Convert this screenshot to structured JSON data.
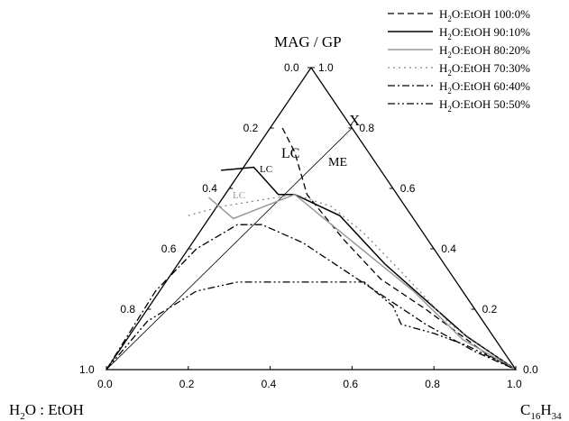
{
  "chart_data": {
    "type": "ternary",
    "vertices": {
      "top": "MAG / GP",
      "left_base": "H",
      "left_sub": "2",
      "left_rest": "O : EtOH",
      "right_base": "C",
      "right_sub": "16",
      "right_sub2": "H",
      "right_sub3": "34"
    },
    "ticks": {
      "bottom": [
        "0.0",
        "0.2",
        "0.4",
        "0.6",
        "0.8",
        "1.0"
      ],
      "left": [
        "0.0",
        "0.2",
        "0.4",
        "0.6",
        "0.8",
        "1.0"
      ],
      "right": [
        "1.0",
        "0.8",
        "0.6",
        "0.4",
        "0.2",
        "0.0"
      ]
    },
    "annotations": {
      "lc_big": "LC",
      "lc_mid": "LC",
      "lc_small": "LC",
      "me": "ME",
      "x": "X"
    },
    "legend_position": "top-right",
    "series": [
      {
        "name_pre": "H",
        "name_sub": "2",
        "name_post": "O:EtOH 100:0%",
        "style": "dash",
        "color": "#000000",
        "points": [
          [
            0.43,
            0.8
          ],
          [
            0.46,
            0.72
          ],
          [
            0.49,
            0.58
          ],
          [
            0.58,
            0.43
          ],
          [
            0.67,
            0.3
          ],
          [
            0.78,
            0.2
          ],
          [
            0.93,
            0.05
          ],
          [
            1.0,
            0.0
          ]
        ]
      },
      {
        "name_pre": "H",
        "name_sub": "2",
        "name_post": "O:EtOH 90:10%",
        "style": "solid",
        "color": "#000000",
        "points": [
          [
            0.28,
            0.66
          ],
          [
            0.36,
            0.67
          ],
          [
            0.42,
            0.58
          ],
          [
            0.46,
            0.58
          ],
          [
            0.57,
            0.51
          ],
          [
            0.68,
            0.35
          ],
          [
            0.78,
            0.23
          ],
          [
            0.88,
            0.11
          ],
          [
            1.0,
            0.0
          ]
        ]
      },
      {
        "name_pre": "H",
        "name_sub": "2",
        "name_post": "O:EtOH 80:20%",
        "style": "solid",
        "color": "#999999",
        "points": [
          [
            0.25,
            0.57
          ],
          [
            0.31,
            0.5
          ],
          [
            0.46,
            0.58
          ],
          [
            0.55,
            0.48
          ],
          [
            0.65,
            0.37
          ],
          [
            0.75,
            0.26
          ],
          [
            0.87,
            0.1
          ],
          [
            1.0,
            0.0
          ]
        ]
      },
      {
        "name_pre": "H",
        "name_sub": "2",
        "name_post": "O:EtOH 70:30%",
        "style": "dot",
        "color": "#888888",
        "points": [
          [
            0.2,
            0.51
          ],
          [
            0.28,
            0.54
          ],
          [
            0.37,
            0.56
          ],
          [
            0.46,
            0.58
          ],
          [
            0.55,
            0.54
          ],
          [
            0.63,
            0.45
          ],
          [
            0.73,
            0.31
          ],
          [
            0.84,
            0.15
          ],
          [
            1.0,
            0.0
          ]
        ]
      },
      {
        "name_pre": "H",
        "name_sub": "2",
        "name_post": "O:EtOH 60:40%",
        "style": "dashdot",
        "color": "#000000",
        "points": [
          [
            0.0,
            0.0
          ],
          [
            0.12,
            0.26
          ],
          [
            0.22,
            0.4
          ],
          [
            0.32,
            0.48
          ],
          [
            0.38,
            0.48
          ],
          [
            0.48,
            0.42
          ],
          [
            0.58,
            0.33
          ],
          [
            0.68,
            0.24
          ],
          [
            0.78,
            0.15
          ],
          [
            0.9,
            0.06
          ],
          [
            1.0,
            0.0
          ]
        ]
      },
      {
        "name_pre": "H",
        "name_sub": "2",
        "name_post": "O:EtOH 50:50%",
        "style": "dashdotdot",
        "color": "#000000",
        "points": [
          [
            0.0,
            0.0
          ],
          [
            0.1,
            0.16
          ],
          [
            0.22,
            0.26
          ],
          [
            0.32,
            0.29
          ],
          [
            0.42,
            0.29
          ],
          [
            0.52,
            0.29
          ],
          [
            0.63,
            0.29
          ],
          [
            0.7,
            0.21
          ],
          [
            0.72,
            0.15
          ],
          [
            0.8,
            0.12
          ],
          [
            0.88,
            0.08
          ],
          [
            1.0,
            0.0
          ]
        ]
      }
    ]
  }
}
